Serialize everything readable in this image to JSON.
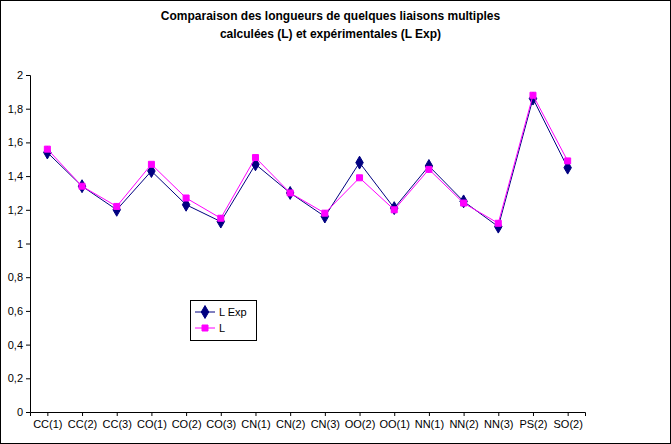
{
  "chart_data": {
    "type": "line",
    "title": "Comparaison des longueurs de quelques  liaisons multiples\ncalculées (L) et expérimentales (L Exp)",
    "categories": [
      "CC(1)",
      "CC(2)",
      "CC(3)",
      "CO(1)",
      "CO(2)",
      "CO(3)",
      "CN(1)",
      "CN(2)",
      "CN(3)",
      "OO(2)",
      "OO(1)",
      "NN(1)",
      "NN(2)",
      "NN(3)",
      "PS(2)",
      "SO(2)"
    ],
    "series": [
      {
        "name": "L Exp",
        "color": "#000080",
        "marker": "diamond",
        "line_style": "solid",
        "values": [
          1.54,
          1.34,
          1.2,
          1.43,
          1.23,
          1.13,
          1.47,
          1.3,
          1.16,
          1.48,
          1.21,
          1.46,
          1.25,
          1.1,
          1.86,
          1.45
        ]
      },
      {
        "name": "L",
        "color": "#ff00ff",
        "marker": "square",
        "line_style": "solid",
        "values": [
          1.56,
          1.34,
          1.22,
          1.47,
          1.27,
          1.15,
          1.51,
          1.3,
          1.18,
          1.39,
          1.2,
          1.44,
          1.24,
          1.12,
          1.88,
          1.49
        ]
      }
    ],
    "ylim": [
      0,
      2
    ],
    "yticks": [
      0,
      {
        "value": 0.2,
        "label": "0,2"
      },
      {
        "value": 0.4,
        "label": "0,4"
      },
      {
        "value": 0.6,
        "label": "0,6"
      },
      {
        "value": 0.8,
        "label": "0,8"
      },
      1,
      {
        "value": 1.2,
        "label": "1,2"
      },
      {
        "value": 1.4,
        "label": "1,4"
      },
      {
        "value": 1.6,
        "label": "1,6"
      },
      {
        "value": 1.8,
        "label": "1,8"
      },
      2
    ],
    "grid": false,
    "legend": "lower left"
  }
}
